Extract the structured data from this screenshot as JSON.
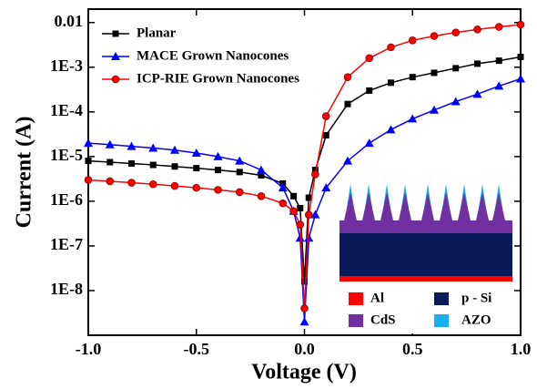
{
  "chart_data": {
    "type": "line",
    "x_label": "Voltage (V)",
    "y_label": "Current (A)",
    "y_log": true,
    "xlim": [
      -1.0,
      1.0
    ],
    "ylim": [
      1e-09,
      0.02
    ],
    "xticks": [
      {
        "value": -1.0,
        "label": "-1.0"
      },
      {
        "value": -0.5,
        "label": "-0.5"
      },
      {
        "value": 0.0,
        "label": "0.0"
      },
      {
        "value": 0.5,
        "label": "0.5"
      },
      {
        "value": 1.0,
        "label": "1.0"
      }
    ],
    "yticks": [
      0.01,
      {
        "value": 0.001,
        "label": "1E-3"
      },
      {
        "value": 0.0001,
        "label": "1E-4"
      },
      {
        "value": 1e-05,
        "label": "1E-5"
      },
      {
        "value": 1e-06,
        "label": "1E-6"
      },
      {
        "value": 1e-07,
        "label": "1E-7"
      },
      {
        "value": 1e-08,
        "label": "1E-8"
      }
    ],
    "x": [
      -1.0,
      -0.9,
      -0.8,
      -0.7,
      -0.6,
      -0.5,
      -0.4,
      -0.3,
      -0.2,
      -0.1,
      -0.05,
      -0.02,
      0.0,
      0.02,
      0.05,
      0.1,
      0.2,
      0.3,
      0.4,
      0.5,
      0.6,
      0.7,
      0.8,
      0.9,
      1.0
    ],
    "series": [
      {
        "name": "Planar",
        "color": "#000000",
        "marker": "square",
        "values": [
          8e-06,
          7.5e-06,
          7e-06,
          6.5e-06,
          6e-06,
          5.5e-06,
          5e-06,
          4.5e-06,
          3.8e-06,
          2.5e-06,
          1.3e-06,
          7e-07,
          1.6e-08,
          1.2e-06,
          5e-06,
          3e-05,
          0.00015,
          0.0003,
          0.00045,
          0.0006,
          0.00075,
          0.00095,
          0.0012,
          0.0014,
          0.0017
        ]
      },
      {
        "name": "MACE Grown Nanocones",
        "color": "#0000ff",
        "marker": "triangle",
        "values": [
          2e-05,
          1.85e-05,
          1.7e-05,
          1.55e-05,
          1.4e-05,
          1.2e-05,
          1e-05,
          8e-06,
          5e-06,
          2e-06,
          6e-07,
          1.5e-07,
          2e-09,
          1.5e-07,
          5e-07,
          2e-06,
          8e-06,
          2e-05,
          4e-05,
          7e-05,
          0.00011,
          0.00017,
          0.00025,
          0.00038,
          0.00055
        ]
      },
      {
        "name": "ICP-RIE Grown Nanocones",
        "color": "#ff0000",
        "marker": "circle",
        "values": [
          3e-06,
          2.8e-06,
          2.6e-06,
          2.4e-06,
          2.2e-06,
          2e-06,
          1.8e-06,
          1.6e-06,
          1.3e-06,
          9e-07,
          6e-07,
          3e-07,
          4e-09,
          5e-07,
          4e-06,
          8e-05,
          0.0006,
          0.0016,
          0.0028,
          0.004,
          0.005,
          0.006,
          0.007,
          0.008,
          0.009
        ]
      }
    ],
    "inset_legend": [
      {
        "label": "Al",
        "color": "#ff0000"
      },
      {
        "label": "p - Si",
        "color": "#0a1a5a"
      },
      {
        "label": "CdS",
        "color": "#7030a0"
      },
      {
        "label": "AZO",
        "color": "#1ab0f0"
      }
    ]
  }
}
